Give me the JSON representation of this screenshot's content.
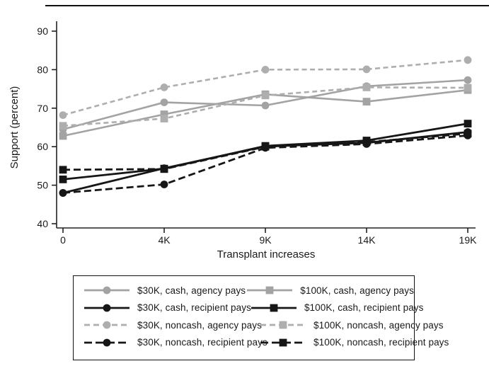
{
  "figure": {
    "top_rule": true,
    "background": "#ffffff"
  },
  "colors": {
    "black_series": "#161616",
    "gray_solid_series": "#a3a3a3",
    "gray_dashed_series": "#aeaeae",
    "axis": "#222222",
    "text": "#1a1a1a"
  },
  "chart_data": {
    "type": "line",
    "title": "",
    "xlabel": "Transplant increases",
    "ylabel": "Support (percent)",
    "x_tick_labels": [
      "0",
      "4K",
      "9K",
      "14K",
      "19K"
    ],
    "yticks": [
      40,
      50,
      60,
      70,
      80,
      90
    ],
    "ylim": [
      40,
      90
    ],
    "grid": false,
    "legend_position": "bottom-boxed-2-columns",
    "series": [
      {
        "name": "$30K, cash, agency pays",
        "color": "gray",
        "line": "solid",
        "marker": "circle",
        "values": [
          64.5,
          71.5,
          70.7,
          75.7,
          77.3
        ]
      },
      {
        "name": "$100K, cash, agency pays",
        "color": "gray",
        "line": "solid",
        "marker": "square",
        "values": [
          62.8,
          68.4,
          73.6,
          71.7,
          74.7
        ]
      },
      {
        "name": "$30K, cash, recipient pays",
        "color": "black",
        "line": "solid",
        "marker": "circle",
        "values": [
          48.0,
          54.4,
          60.1,
          61.0,
          63.8
        ]
      },
      {
        "name": "$100K, cash, recipient pays",
        "color": "black",
        "line": "solid",
        "marker": "square",
        "values": [
          51.5,
          54.3,
          60.2,
          61.6,
          66.0
        ]
      },
      {
        "name": "$30K, noncash, agency pays",
        "color": "gray",
        "line": "dashed",
        "marker": "circle",
        "values": [
          68.2,
          75.4,
          80.0,
          80.1,
          82.5
        ]
      },
      {
        "name": "$100K, noncash, agency pays",
        "color": "gray",
        "line": "dashed",
        "marker": "square",
        "values": [
          65.4,
          67.3,
          73.3,
          75.4,
          75.3
        ]
      },
      {
        "name": "$30K, noncash, recipient pays",
        "color": "black",
        "line": "dashed",
        "marker": "circle",
        "values": [
          48.0,
          50.2,
          59.7,
          60.7,
          62.9
        ]
      },
      {
        "name": "$100K, noncash, recipient pays",
        "color": "black",
        "line": "dashed",
        "marker": "square",
        "values": [
          54.0,
          54.2,
          60.0,
          61.2,
          63.4
        ]
      }
    ],
    "legend_rows": [
      [
        0,
        1
      ],
      [
        2,
        3
      ],
      [
        4,
        5
      ],
      [
        6,
        7
      ]
    ]
  }
}
